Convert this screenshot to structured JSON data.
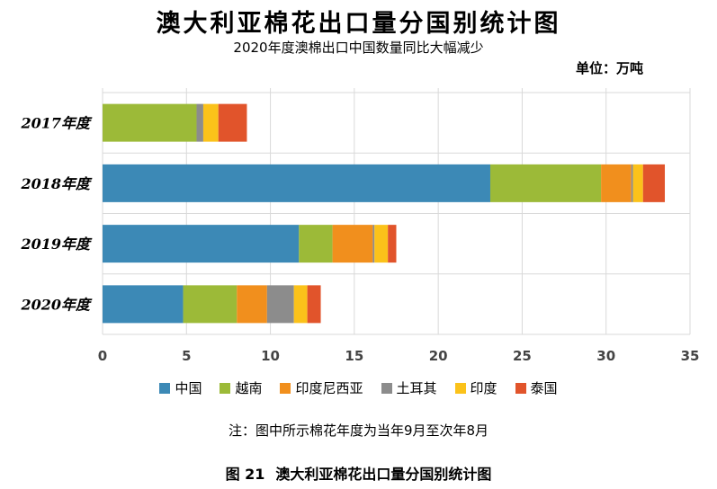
{
  "header": {
    "title": "澳大利亚棉花出口量分国别统计图",
    "subtitle": "2020年度澳棉出口中国数量同比大幅减少",
    "unit": "单位：万吨"
  },
  "footer": {
    "note": "注：图中所示棉花年度为当年9月至次年8月",
    "caption_number": "图 21",
    "caption_text": "澳大利亚棉花出口量分国别统计图"
  },
  "chart_data": {
    "type": "bar",
    "orientation": "horizontal",
    "stacked": true,
    "categories": [
      "2017年度",
      "2018年度",
      "2019年度",
      "2020年度"
    ],
    "series": [
      {
        "name": "中国",
        "color": "#3c89b6",
        "values": [
          0,
          23.1,
          11.7,
          4.8
        ]
      },
      {
        "name": "越南",
        "color": "#9cba38",
        "values": [
          5.6,
          6.6,
          2.0,
          3.2
        ]
      },
      {
        "name": "印度尼西亚",
        "color": "#f18f1d",
        "values": [
          0,
          1.8,
          2.4,
          1.8
        ]
      },
      {
        "name": "土耳其",
        "color": "#8c8c8c",
        "values": [
          0.4,
          0.1,
          0.1,
          1.6
        ]
      },
      {
        "name": "印度",
        "color": "#fbc21a",
        "values": [
          0.9,
          0.6,
          0.8,
          0.8
        ]
      },
      {
        "name": "泰国",
        "color": "#e1542b",
        "values": [
          1.7,
          1.3,
          0.5,
          0.8
        ]
      }
    ],
    "xlim": [
      0,
      35
    ],
    "xticks": [
      "0",
      "5",
      "10",
      "15",
      "20",
      "25",
      "30",
      "35"
    ],
    "grid": true,
    "legend_position": "bottom"
  }
}
